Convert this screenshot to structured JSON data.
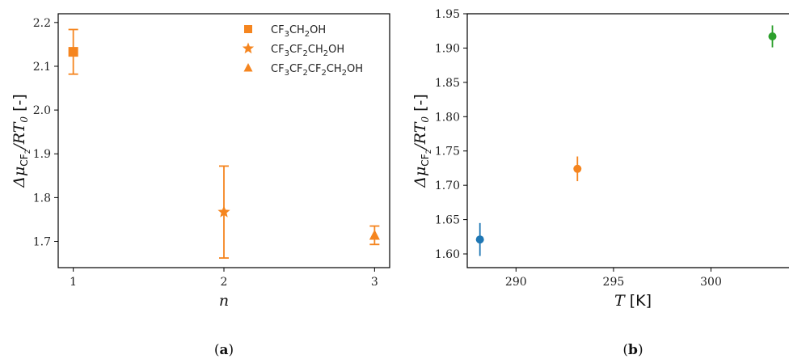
{
  "chart_data": [
    {
      "id": "a",
      "type": "scatter",
      "caption_letter": "a",
      "xlabel": "n",
      "ylabel": "ΔμCF₂/RT₀ [-]",
      "xlim": [
        0.9,
        3.1
      ],
      "ylim": [
        1.64,
        2.22
      ],
      "xticks": [
        1,
        2,
        3
      ],
      "xtick_labels": [
        "1",
        "2",
        "3"
      ],
      "yticks": [
        1.7,
        1.8,
        1.9,
        2.0,
        2.1,
        2.2
      ],
      "ytick_labels": [
        "1.7",
        "1.8",
        "1.9",
        "2.0",
        "2.1",
        "2.2"
      ],
      "legend_position": "top-right",
      "series": [
        {
          "name": "CF3CH2OH",
          "label_parts": [
            [
              "CF",
              "3"
            ],
            [
              "CH",
              "2"
            ],
            [
              "OH",
              ""
            ]
          ],
          "marker": "square",
          "color": "#f5851f",
          "x": [
            1
          ],
          "y": [
            2.133
          ],
          "err": [
            0.051
          ]
        },
        {
          "name": "CF3CF2CH2OH",
          "label_parts": [
            [
              "CF",
              "3"
            ],
            [
              "CF",
              "2"
            ],
            [
              "CH",
              "2"
            ],
            [
              "OH",
              ""
            ]
          ],
          "marker": "star",
          "color": "#f5851f",
          "x": [
            2
          ],
          "y": [
            1.767
          ],
          "err": [
            0.105
          ]
        },
        {
          "name": "CF3CF2CF2CH2OH",
          "label_parts": [
            [
              "CF",
              "3"
            ],
            [
              "CF",
              "2"
            ],
            [
              "CF",
              "2"
            ],
            [
              "CH",
              "2"
            ],
            [
              "OH",
              ""
            ]
          ],
          "marker": "triangle",
          "color": "#f5851f",
          "x": [
            3
          ],
          "y": [
            1.714
          ],
          "err": [
            0.021
          ]
        }
      ]
    },
    {
      "id": "b",
      "type": "scatter",
      "caption_letter": "b",
      "xlabel": "T [K]",
      "ylabel": "ΔμCF₂/RT₀ [-]",
      "xlim": [
        287.5,
        304.0
      ],
      "ylim": [
        1.58,
        1.95
      ],
      "xticks": [
        290,
        295,
        300
      ],
      "xtick_labels": [
        "290",
        "295",
        "300"
      ],
      "yticks": [
        1.6,
        1.65,
        1.7,
        1.75,
        1.8,
        1.85,
        1.9,
        1.95
      ],
      "ytick_labels": [
        "1.60",
        "1.65",
        "1.70",
        "1.75",
        "1.80",
        "1.85",
        "1.90",
        "1.95"
      ],
      "series": [
        {
          "marker": "circle",
          "color": "#1f77b4",
          "x": [
            288.15
          ],
          "y": [
            1.621
          ],
          "err": [
            0.024
          ]
        },
        {
          "marker": "circle",
          "color": "#f5851f",
          "x": [
            293.15
          ],
          "y": [
            1.724
          ],
          "err": [
            0.018
          ]
        },
        {
          "marker": "circle",
          "color": "#2ca02c",
          "x": [
            303.15
          ],
          "y": [
            1.917
          ],
          "err": [
            0.016
          ]
        }
      ]
    }
  ]
}
